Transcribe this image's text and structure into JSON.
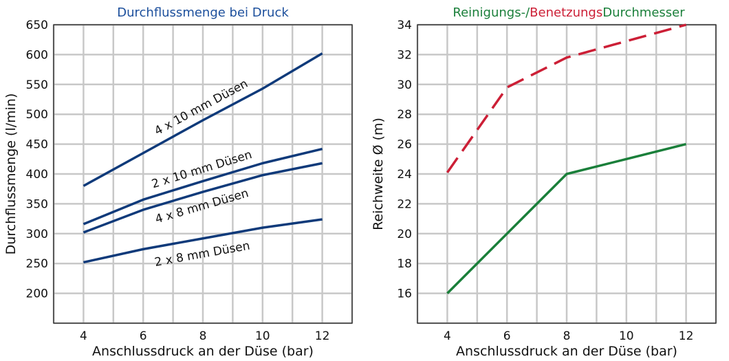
{
  "chart_data": [
    {
      "type": "line",
      "title": "Durchflussmenge bei Druck",
      "title_color": "#1c4f9c",
      "xlabel": "Anschlussdruck an der Düse (bar)",
      "ylabel": "Durchflussmenge (l/min)",
      "x": [
        4,
        6,
        8,
        10,
        12
      ],
      "xlim": [
        3,
        13
      ],
      "ylim": [
        150,
        650
      ],
      "yticks": [
        200,
        250,
        300,
        350,
        400,
        450,
        500,
        550,
        600,
        650
      ],
      "xticks": [
        4,
        6,
        8,
        10,
        12
      ],
      "grid": true,
      "line_color": "#0f3a7a",
      "series": [
        {
          "name": "4 x 10 mm Düsen",
          "values": [
            380,
            435,
            490,
            543,
            602
          ]
        },
        {
          "name": "2 x 10 mm Düsen",
          "values": [
            316,
            357,
            388,
            418,
            442
          ]
        },
        {
          "name": "4 x 8 mm Düsen",
          "values": [
            302,
            340,
            370,
            398,
            418
          ]
        },
        {
          "name": "2 x 8 mm Düsen",
          "values": [
            252,
            274,
            292,
            310,
            324
          ]
        }
      ]
    },
    {
      "type": "line",
      "title_parts": [
        {
          "text": "Reinigungs-/",
          "color": "#1a7f3a"
        },
        {
          "text": "Benetzungs",
          "color": "#cc1f36"
        },
        {
          "text": "Durchmesser",
          "color": "#1a7f3a"
        }
      ],
      "xlabel": "Anschlussdruck an der Düse (bar)",
      "ylabel": "Reichweite Ø (m)",
      "x": [
        4,
        6,
        8,
        10,
        12
      ],
      "xlim": [
        3,
        13
      ],
      "ylim": [
        14,
        34
      ],
      "yticks": [
        16,
        18,
        20,
        22,
        24,
        26,
        28,
        30,
        32,
        34
      ],
      "xticks": [
        4,
        6,
        8,
        10,
        12
      ],
      "grid": true,
      "series": [
        {
          "color": "#cc1f36",
          "dashed": true,
          "values": [
            24.1,
            29.8,
            31.8,
            32.9,
            34.0
          ]
        },
        {
          "color": "#1a7f3a",
          "dashed": false,
          "values": [
            16,
            20,
            24,
            25,
            26
          ]
        }
      ]
    }
  ]
}
